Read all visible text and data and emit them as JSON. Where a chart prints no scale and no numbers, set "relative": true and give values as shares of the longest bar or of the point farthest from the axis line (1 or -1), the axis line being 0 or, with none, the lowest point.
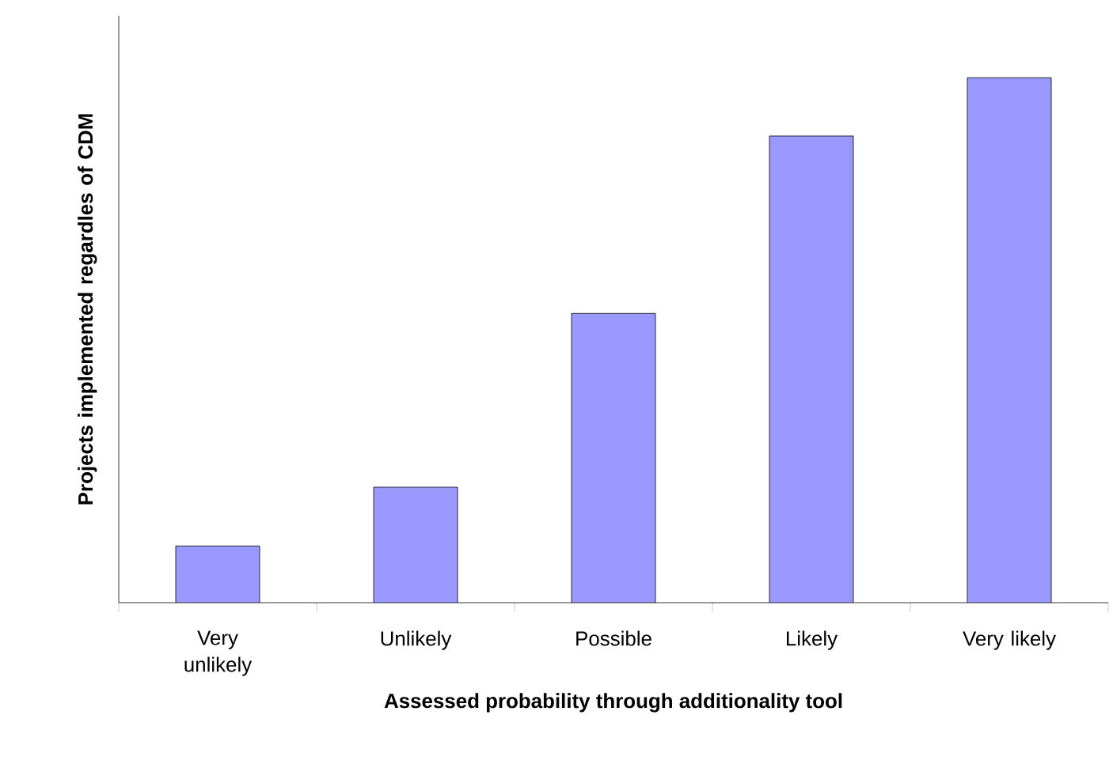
{
  "chart_data": {
    "type": "bar",
    "relative": true,
    "xlabel": "Assessed probability through additionality tool",
    "ylabel": "Projects implemented regardles of CDM",
    "categories": [
      "Very unlikely",
      "Unlikely",
      "Possible",
      "Likely",
      "Very likely"
    ],
    "values": [
      0.108,
      0.22,
      0.551,
      0.889,
      1
    ],
    "color": "#9999ff"
  }
}
